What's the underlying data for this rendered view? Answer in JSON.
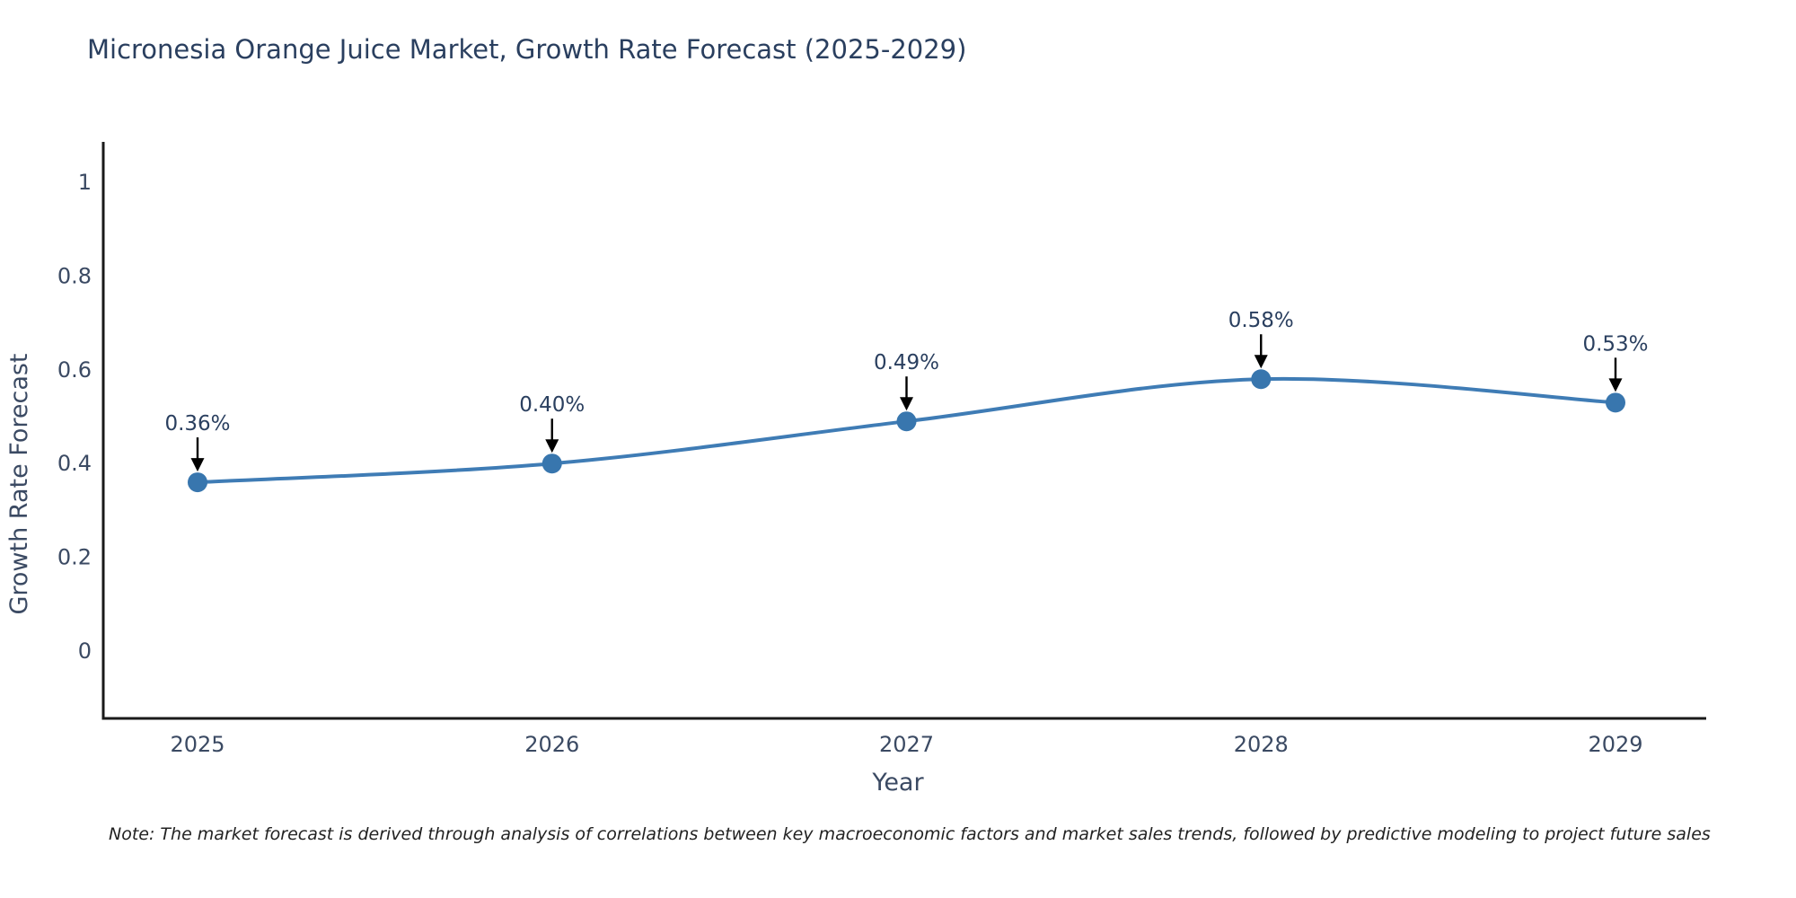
{
  "page": {
    "background": "#ffffff"
  },
  "chart": {
    "note": "Note: The market forecast is derived through analysis of correlations between key macroeconomic factors and market sales trends, followed by predictive modeling to project future sales",
    "colors": {
      "line": "#3f7cb5",
      "marker": "#3876ae",
      "axis_line": "#1a1a1a",
      "title_text": "#2a3f5f",
      "tick_text": "#3b4a63",
      "axis_title_text": "#3b4a63",
      "annotation_text": "#2a3f5f",
      "arrow": "#000000"
    }
  },
  "chart_data": {
    "type": "line",
    "title": "Micronesia Orange Juice Market, Growth Rate Forecast (2025-2029)",
    "xlabel": "Year",
    "ylabel": "Growth Rate Forecast",
    "x": [
      2025,
      2026,
      2027,
      2028,
      2029
    ],
    "values": [
      0.36,
      0.4,
      0.49,
      0.58,
      0.53
    ],
    "point_labels": [
      "0.36%",
      "0.40%",
      "0.49%",
      "0.58%",
      "0.53%"
    ],
    "x_tick_labels": [
      "2025",
      "2026",
      "2027",
      "2028",
      "2029"
    ],
    "y_ticks": [
      0,
      0.2,
      0.4,
      0.6,
      0.8,
      1
    ],
    "y_tick_labels": [
      "0",
      "0.2",
      "0.4",
      "0.6",
      "0.8",
      "1"
    ],
    "ylim": [
      -0.14,
      1.08
    ],
    "grid": false,
    "legend": "none",
    "line_shape": "spline",
    "marker": "circle",
    "annotations_have_arrows": true
  }
}
